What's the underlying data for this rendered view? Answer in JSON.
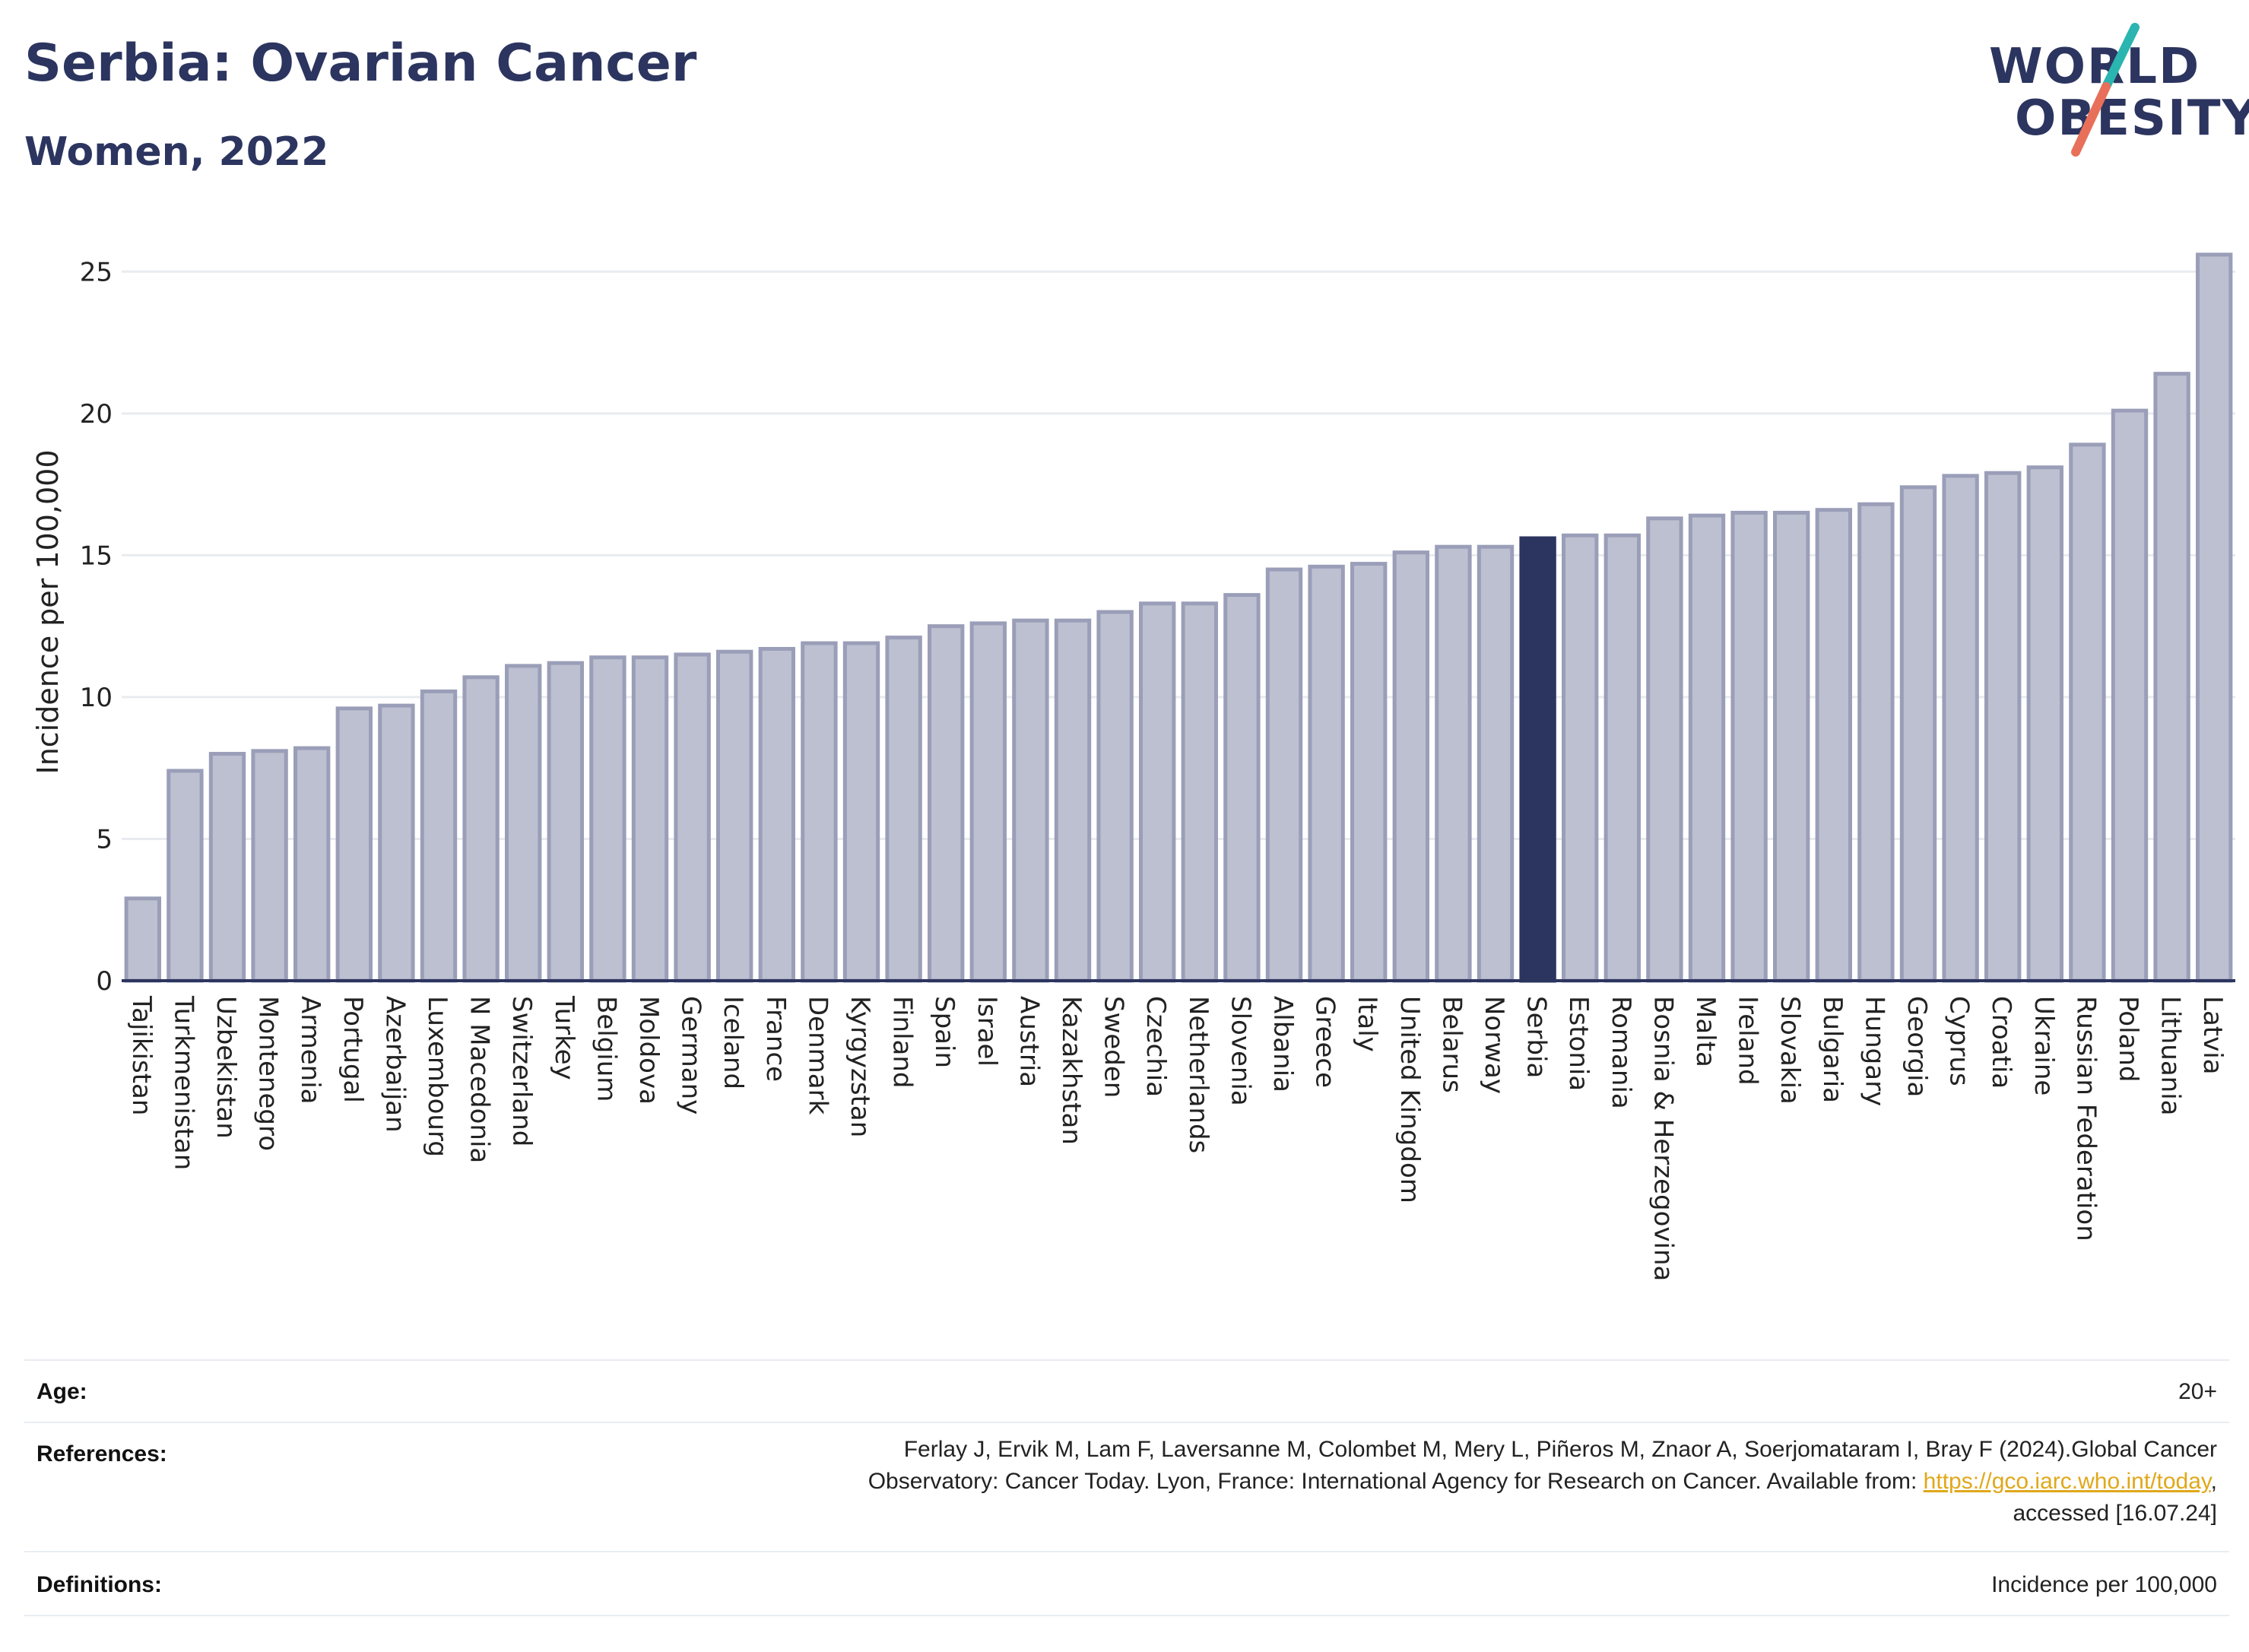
{
  "header": {
    "title": "Serbia: Ovarian Cancer",
    "subtitle": "Women, 2022"
  },
  "logo": {
    "line1": "WORLD",
    "line2": "OBESITY",
    "accent_teal": "#2bb5b1",
    "accent_coral": "#e8705a"
  },
  "chart_data": {
    "type": "bar",
    "ylabel": "Incidence per 100,000",
    "xlabel": "",
    "ylim": [
      0,
      26
    ],
    "yticks": [
      0,
      5,
      10,
      15,
      20,
      25
    ],
    "grid": true,
    "highlight": "Serbia",
    "colors": {
      "bar_fill": "#bdc0d0",
      "bar_stroke": "#9a9eb8",
      "highlight_fill": "#2c355f",
      "grid": "#e8ebef",
      "axis": "#2c355f"
    },
    "categories": [
      "Tajikistan",
      "Turkmenistan",
      "Uzbekistan",
      "Montenegro",
      "Armenia",
      "Portugal",
      "Azerbaijan",
      "Luxembourg",
      "N Macedonia",
      "Switzerland",
      "Turkey",
      "Belgium",
      "Moldova",
      "Germany",
      "Iceland",
      "France",
      "Denmark",
      "Kyrgyzstan",
      "Finland",
      "Spain",
      "Israel",
      "Austria",
      "Kazakhstan",
      "Sweden",
      "Czechia",
      "Netherlands",
      "Slovenia",
      "Albania",
      "Greece",
      "Italy",
      "United Kingdom",
      "Belarus",
      "Norway",
      "Serbia",
      "Estonia",
      "Romania",
      "Bosnia & Herzegovina",
      "Malta",
      "Ireland",
      "Slovakia",
      "Bulgaria",
      "Hungary",
      "Georgia",
      "Cyprus",
      "Croatia",
      "Ukraine",
      "Russian Federation",
      "Poland",
      "Lithuania",
      "Latvia"
    ],
    "values": [
      2.9,
      7.4,
      8.0,
      8.1,
      8.2,
      9.6,
      9.7,
      10.2,
      10.7,
      11.1,
      11.2,
      11.4,
      11.4,
      11.5,
      11.6,
      11.7,
      11.9,
      11.9,
      12.1,
      12.5,
      12.6,
      12.7,
      12.7,
      13.0,
      13.3,
      13.3,
      13.6,
      14.5,
      14.6,
      14.7,
      15.1,
      15.3,
      15.3,
      15.6,
      15.7,
      15.7,
      16.3,
      16.4,
      16.5,
      16.5,
      16.6,
      16.8,
      17.4,
      17.8,
      17.9,
      18.1,
      18.9,
      20.1,
      21.4,
      25.6
    ]
  },
  "info": {
    "age_label": "Age:",
    "age_value": "20+",
    "references_label": "References:",
    "references_line1": "Ferlay J, Ervik M, Lam F, Laversanne M, Colombet M, Mery L, Piñeros M, Znaor A, Soerjomataram I, Bray F (2024).Global Cancer",
    "references_line2_pre": "Observatory: Cancer Today. Lyon, France: International Agency for Research on Cancer. Available from: ",
    "references_link": "https://gco.iarc.who.int/today",
    "references_line2_post": ",",
    "references_line3": "accessed [16.07.24]",
    "definitions_label": "Definitions:",
    "definitions_value": "Incidence per 100,000"
  }
}
